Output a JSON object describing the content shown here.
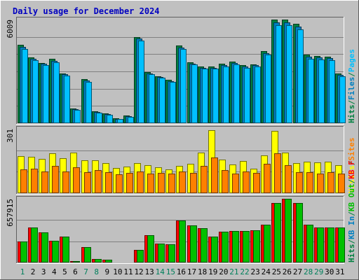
{
  "chart_data": {
    "type": "bar",
    "title": "Daily usage for December 2024",
    "categories": [
      "1",
      "2",
      "3",
      "4",
      "5",
      "6",
      "7",
      "8",
      "9",
      "10",
      "11",
      "12",
      "13",
      "14",
      "15",
      "16",
      "17",
      "18",
      "19",
      "20",
      "21",
      "22",
      "23",
      "24",
      "25",
      "26",
      "27",
      "28",
      "29",
      "30",
      "31"
    ],
    "weekend_days": [
      "1",
      "7",
      "8",
      "14",
      "15",
      "21",
      "22",
      "28",
      "29"
    ],
    "panels": [
      {
        "ymax_label": "6009",
        "ymax": 6009,
        "side_labels": [
          {
            "text": "Hits",
            "color": "#008040"
          },
          {
            "text": "/",
            "color": "#008040"
          },
          {
            "text": "Files",
            "color": "#0080c0"
          },
          {
            "text": "/",
            "color": "#008040"
          },
          {
            "text": "Pages",
            "color": "#00c0ff"
          }
        ],
        "series": [
          {
            "name": "Hits",
            "color": "#008040",
            "values": [
              4530,
              3830,
              3510,
              3720,
              2900,
              870,
              2540,
              680,
              560,
              280,
              450,
              5010,
              2980,
              2740,
              2510,
              4500,
              3550,
              3290,
              3300,
              3450,
              3590,
              3390,
              3430,
              4200,
              5990,
              5990,
              5750,
              3990,
              3910,
              3870,
              2870
            ]
          },
          {
            "name": "Files",
            "color": "#0080c0",
            "values": [
              4410,
              3740,
              3450,
              3600,
              2830,
              820,
              2460,
              640,
              520,
              250,
              420,
              4900,
              2900,
              2680,
              2440,
              4400,
              3470,
              3220,
              3220,
              3360,
              3490,
              3290,
              3350,
              4080,
              5840,
              5850,
              5600,
              3870,
              3800,
              3760,
              2800
            ]
          },
          {
            "name": "Pages",
            "color": "#00c0ff",
            "values": [
              4300,
              3650,
              3380,
              3520,
              2780,
              770,
              2390,
              610,
              480,
              230,
              380,
              4790,
              2830,
              2620,
              2380,
              4300,
              3400,
              3150,
              3150,
              3300,
              3400,
              3200,
              3290,
              3960,
              5690,
              5700,
              5460,
              3750,
              3700,
              3650,
              2740
            ]
          }
        ]
      },
      {
        "ymax_label": "301",
        "ymax": 301,
        "side_labels": [
          {
            "text": "Visits",
            "color": "#ffff00"
          },
          {
            "text": "/",
            "color": "#008040"
          },
          {
            "text": "Sites",
            "color": "#ff8000"
          }
        ],
        "series": [
          {
            "name": "Visits",
            "color": "#ffff00",
            "values": [
              172,
              170,
              160,
              187,
              162,
              190,
              155,
              154,
              142,
              117,
              125,
              140,
              131,
              120,
              111,
              128,
              137,
              191,
              293,
              157,
              134,
              152,
              115,
              176,
              290,
              189,
              141,
              148,
              144,
              147,
              132
            ]
          },
          {
            "name": "Sites",
            "color": "#ff8000",
            "values": [
              111,
              113,
              103,
              129,
              103,
              121,
              98,
              107,
              98,
              88,
              95,
              102,
              93,
              94,
              93,
              101,
              95,
              126,
              167,
              109,
              92,
              100,
              96,
              138,
              185,
              130,
              97,
              99,
              93,
              99,
              90
            ]
          }
        ]
      },
      {
        "ymax_label": "657915",
        "ymax": 657915,
        "side_labels": [
          {
            "text": "Hits",
            "color": "#008040"
          },
          {
            "text": "/",
            "color": "#008040"
          },
          {
            "text": "KB In",
            "color": "#0080c0"
          },
          {
            "text": "/",
            "color": "#008040"
          },
          {
            "text": "KB Out",
            "color": "#00c000"
          },
          {
            "text": "/",
            "color": "#008040"
          },
          {
            "text": "KB F",
            "color": "#ff0000"
          }
        ],
        "series": [
          {
            "name": "KB F",
            "color": "#ff0000",
            "values": [
              220000,
              362000,
              310000,
              224000,
              268000,
              15000,
              158000,
              36000,
              26000,
              10000,
              6000,
              130000,
              280000,
              198000,
              185000,
              436000,
              385000,
              353000,
              266000,
              321000,
              322000,
              323000,
              330000,
              390000,
              612000,
              657915,
              615000,
              388000,
              363000,
              365000,
              365000
            ]
          },
          {
            "name": "KB Out",
            "color": "#00c000",
            "values": [
              220000,
              362000,
              310000,
              224000,
              268000,
              15000,
              158000,
              36000,
              26000,
              10000,
              6000,
              130000,
              280000,
              198000,
              185000,
              436000,
              385000,
              353000,
              266000,
              321000,
              322000,
              323000,
              330000,
              390000,
              612000,
              657915,
              615000,
              388000,
              363000,
              365000,
              365000
            ]
          }
        ]
      }
    ]
  }
}
